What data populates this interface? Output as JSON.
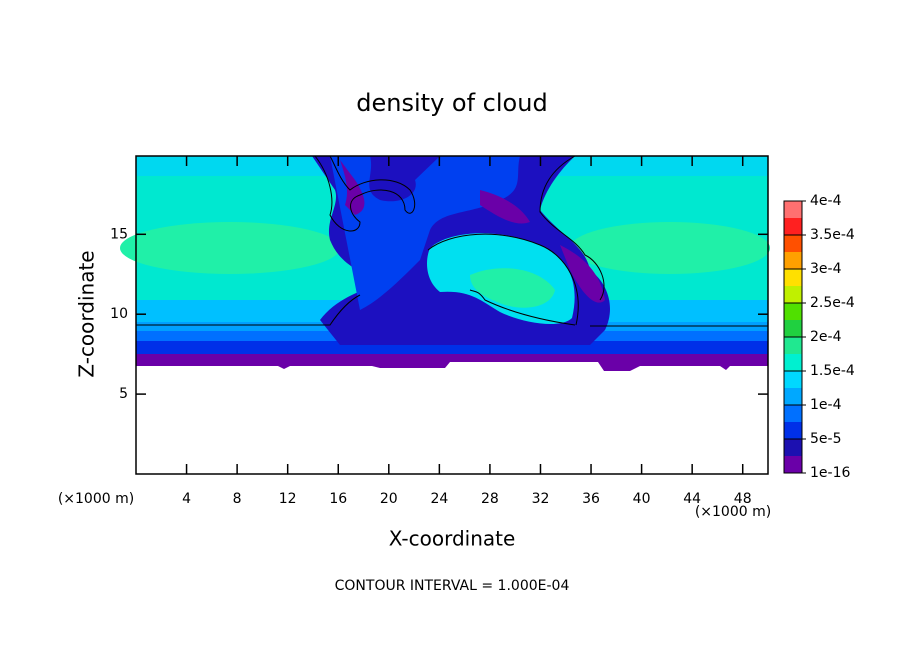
{
  "chart_data": {
    "type": "contour",
    "title": "density of cloud",
    "x_label": "X-coordinate",
    "y_label": "Z-coordinate",
    "x_unit": "(×1000 m)",
    "y_unit": "(×1000 m)",
    "xlim": [
      0,
      50
    ],
    "ylim": [
      0,
      19.9
    ],
    "xticks": [
      4,
      8,
      12,
      16,
      20,
      24,
      28,
      32,
      36,
      40,
      44,
      48
    ],
    "yticks": [
      5,
      10,
      15
    ],
    "colorbar": {
      "levels": [
        1e-16,
        {
          "value": 5e-05,
          "label": "5e-5"
        },
        {
          "value": 0.0001,
          "label": "1e-4"
        },
        {
          "value": 0.00015,
          "label": "1.5e-4"
        },
        {
          "value": 0.0002,
          "label": "2e-4"
        },
        {
          "value": 0.00025,
          "label": "2.5e-4"
        },
        {
          "value": 0.0003,
          "label": "3e-4"
        },
        {
          "value": 0.00035,
          "label": "3.5e-4"
        },
        {
          "value": 0.0004,
          "label": "4e-4"
        }
      ],
      "colors": [
        "#6a00a8",
        "#1c10b0",
        "#0030e8",
        "#0070ff",
        "#00a8ff",
        "#00d8ff",
        "#00f0d0",
        "#20e890",
        "#20d040",
        "#50e000",
        "#c0f000",
        "#ffe000",
        "#ffa000",
        "#ff5000",
        "#ff2020",
        "#ff7070"
      ]
    },
    "footer": "CONTOUR INTERVAL = 1.000E-04"
  }
}
